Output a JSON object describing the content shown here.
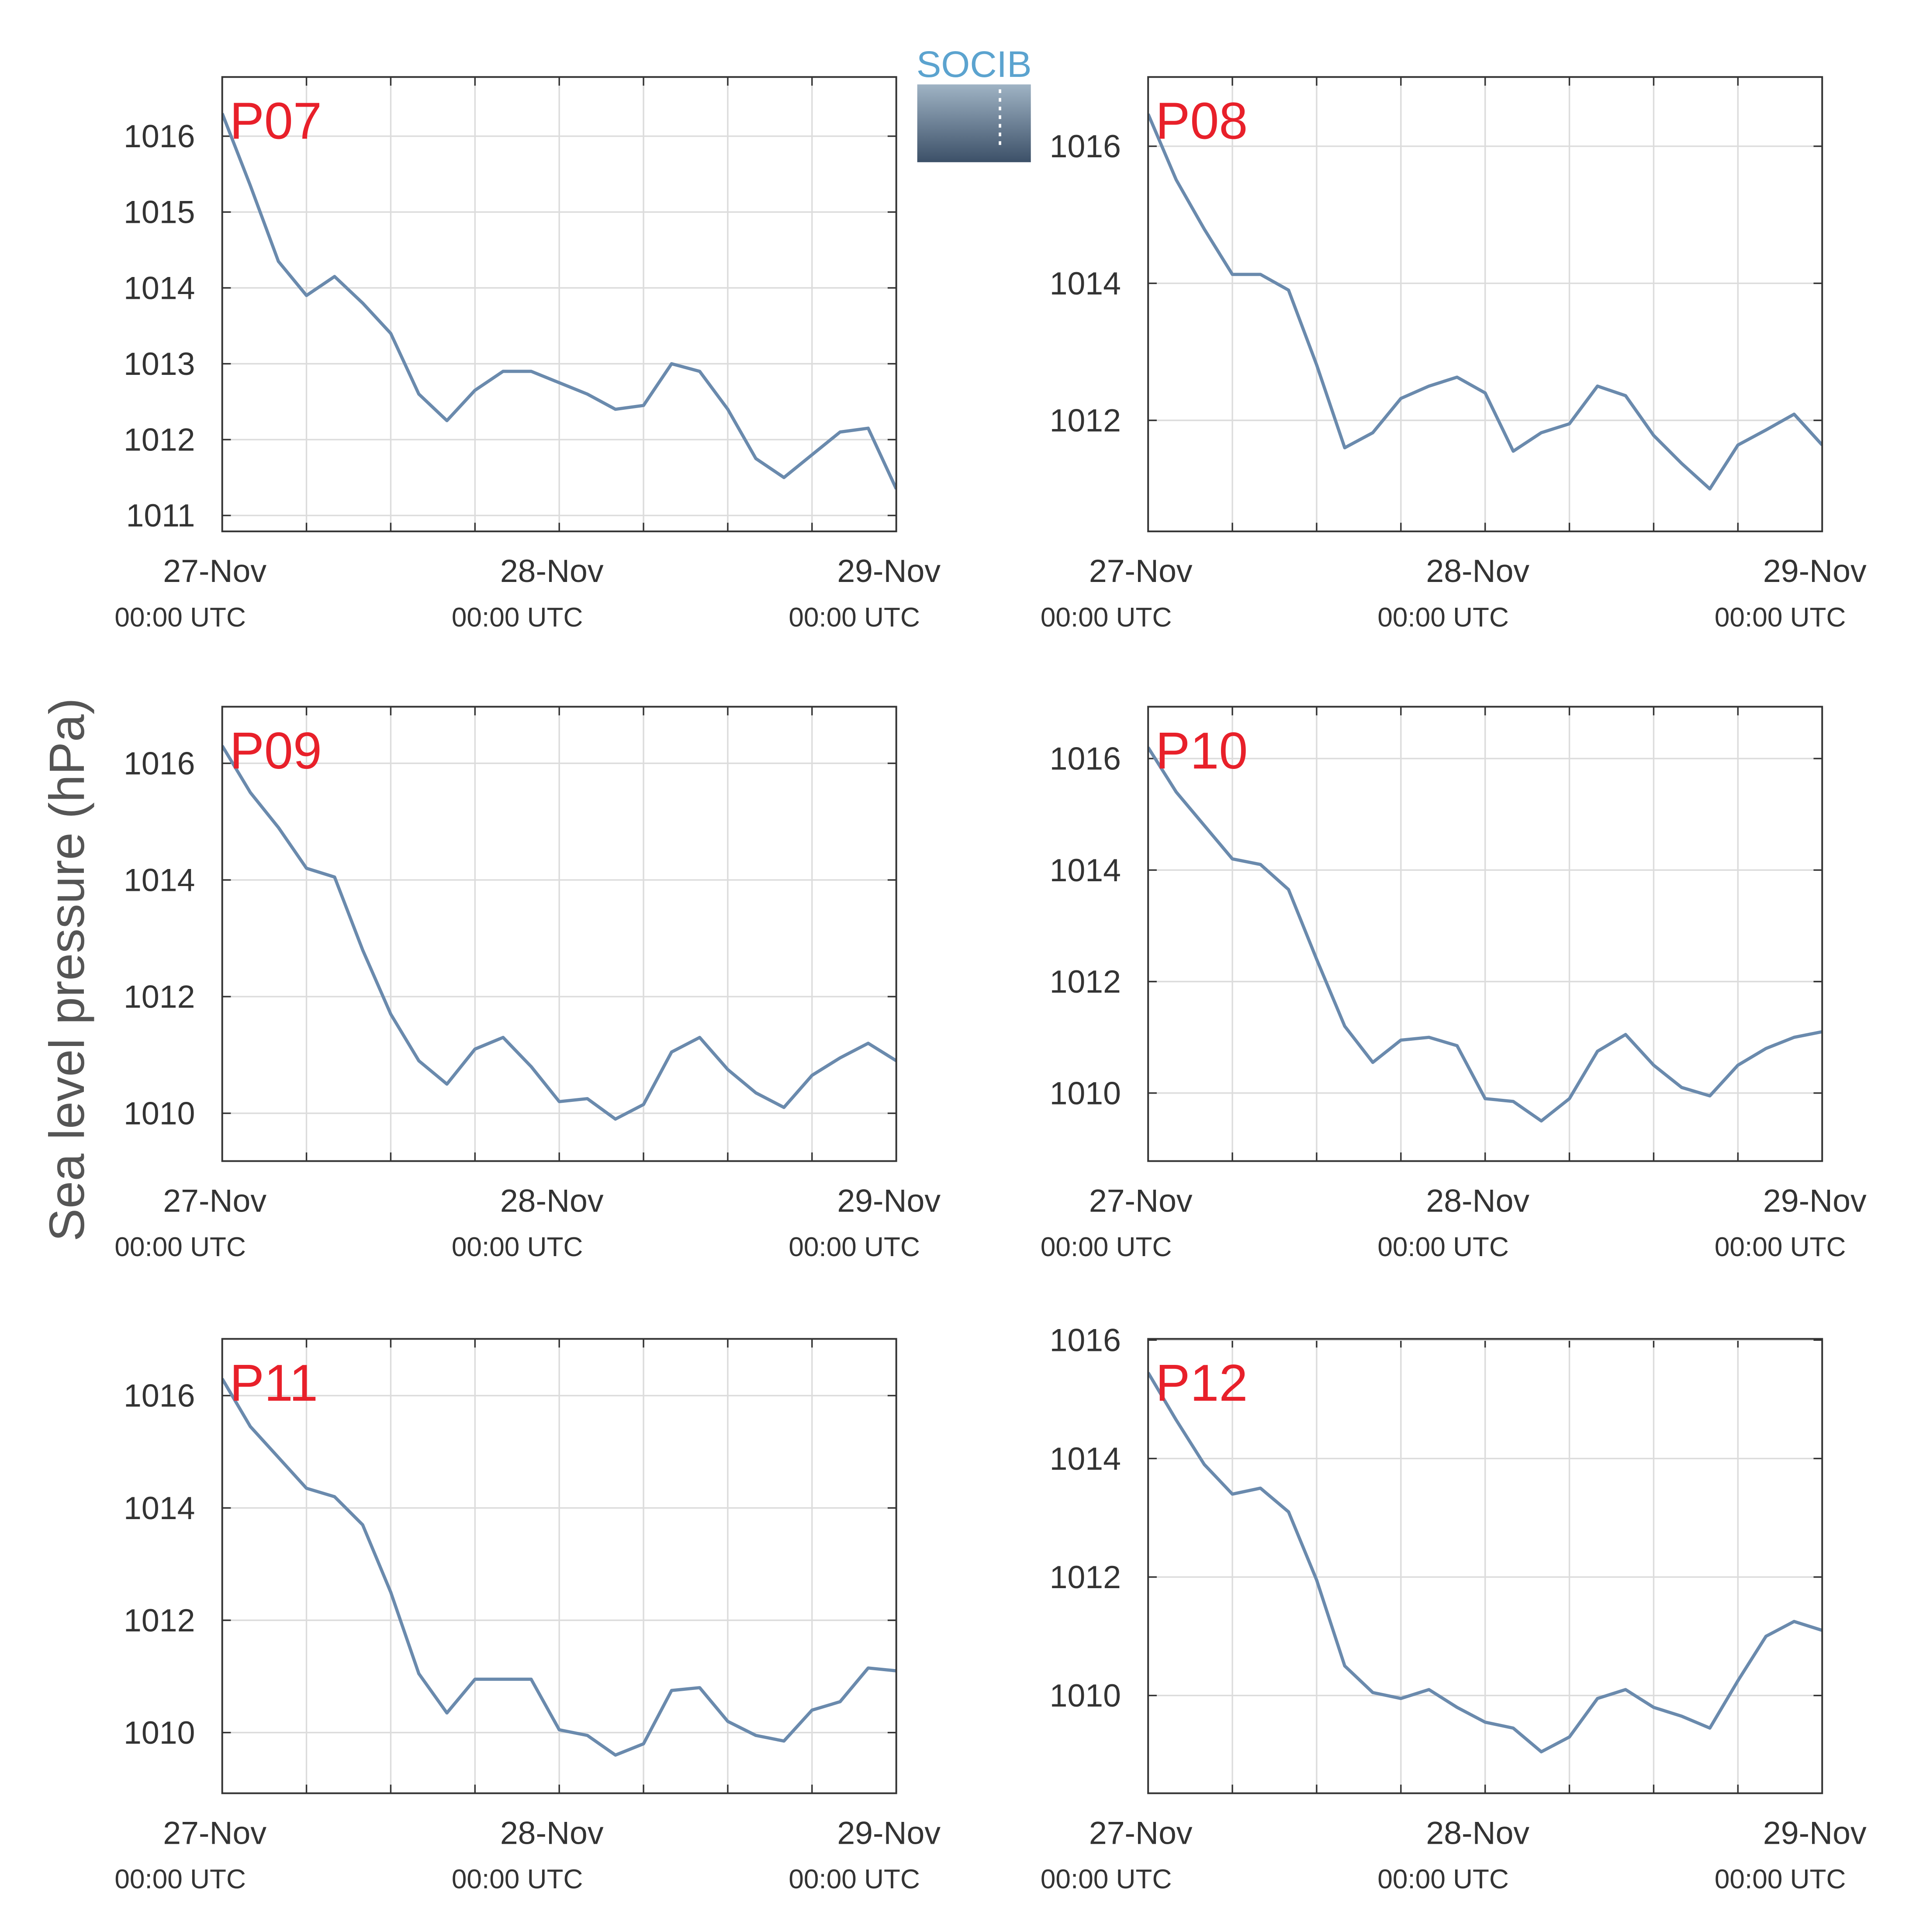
{
  "ylabel": "Sea level pressure (hPa)",
  "logo": "SOCIB",
  "chart_data": [
    {
      "type": "line",
      "title": "P07",
      "title_color": "#e8202a",
      "color": "#6a8aad",
      "grid": true,
      "x": [
        "27-Nov 00:00",
        "27-Nov 02:00",
        "27-Nov 04:00",
        "27-Nov 06:00",
        "27-Nov 08:00",
        "27-Nov 10:00",
        "27-Nov 12:00",
        "27-Nov 14:00",
        "27-Nov 16:00",
        "27-Nov 18:00",
        "27-Nov 20:00",
        "27-Nov 22:00",
        "28-Nov 00:00",
        "28-Nov 02:00",
        "28-Nov 04:00",
        "28-Nov 06:00",
        "28-Nov 08:00",
        "28-Nov 10:00",
        "28-Nov 12:00",
        "28-Nov 14:00",
        "28-Nov 16:00",
        "28-Nov 18:00",
        "28-Nov 20:00",
        "28-Nov 22:00",
        "29-Nov 00:00"
      ],
      "values": [
        1016.3,
        1015.35,
        1014.35,
        1013.9,
        1014.15,
        1013.8,
        1013.4,
        1012.6,
        1012.25,
        1012.65,
        1012.9,
        1012.9,
        1012.75,
        1012.6,
        1012.4,
        1012.45,
        1013.0,
        1012.9,
        1012.4,
        1011.75,
        1011.5,
        1011.8,
        1012.1,
        1012.15,
        1011.35
      ],
      "xlim": [
        "27-Nov 00:00",
        "29-Nov 00:00"
      ],
      "xticks": [
        {
          "value": "27-Nov 00:00",
          "label": [
            "27-Nov",
            "00:00 UTC"
          ]
        },
        {
          "value": "28-Nov 00:00",
          "label": [
            "28-Nov",
            "00:00 UTC"
          ]
        },
        {
          "value": "29-Nov 00:00",
          "label": [
            "29-Nov",
            "00:00 UTC"
          ]
        }
      ],
      "xminorticks": [
        "27-Nov 06:00",
        "27-Nov 12:00",
        "27-Nov 18:00",
        "28-Nov 06:00",
        "28-Nov 12:00",
        "28-Nov 18:00"
      ],
      "ylim": [
        1010.79,
        1016.78
      ],
      "yticks": [
        1011,
        1012,
        1013,
        1014,
        1015,
        1016
      ]
    },
    {
      "type": "line",
      "title": "P08",
      "title_color": "#e8202a",
      "color": "#6a8aad",
      "grid": true,
      "x": [
        "27-Nov 00:00",
        "27-Nov 02:00",
        "27-Nov 04:00",
        "27-Nov 06:00",
        "27-Nov 08:00",
        "27-Nov 10:00",
        "27-Nov 12:00",
        "27-Nov 14:00",
        "27-Nov 16:00",
        "27-Nov 18:00",
        "27-Nov 20:00",
        "27-Nov 22:00",
        "28-Nov 00:00",
        "28-Nov 02:00",
        "28-Nov 04:00",
        "28-Nov 06:00",
        "28-Nov 08:00",
        "28-Nov 10:00",
        "28-Nov 12:00",
        "28-Nov 14:00",
        "28-Nov 16:00",
        "28-Nov 18:00",
        "28-Nov 20:00",
        "28-Nov 22:00",
        "29-Nov 00:00"
      ],
      "values": [
        1016.47,
        1015.51,
        1014.79,
        1014.13,
        1014.13,
        1013.9,
        1012.81,
        1011.6,
        1011.82,
        1012.32,
        1012.5,
        1012.63,
        1012.4,
        1011.55,
        1011.82,
        1011.95,
        1012.5,
        1012.36,
        1011.78,
        1011.37,
        1011.0,
        1011.64,
        1011.86,
        1012.09,
        1011.64
      ],
      "xlim": [
        "27-Nov 00:00",
        "29-Nov 00:00"
      ],
      "xticks": [
        {
          "value": "27-Nov 00:00",
          "label": [
            "27-Nov",
            "00:00 UTC"
          ]
        },
        {
          "value": "28-Nov 00:00",
          "label": [
            "28-Nov",
            "00:00 UTC"
          ]
        },
        {
          "value": "29-Nov 00:00",
          "label": [
            "29-Nov",
            "00:00 UTC"
          ]
        }
      ],
      "xminorticks": [
        "27-Nov 06:00",
        "27-Nov 12:00",
        "27-Nov 18:00",
        "28-Nov 06:00",
        "28-Nov 12:00",
        "28-Nov 18:00"
      ],
      "ylim": [
        1010.38,
        1017.01
      ],
      "yticks": [
        1012,
        1014,
        1016
      ]
    },
    {
      "type": "line",
      "title": "P09",
      "title_color": "#e8202a",
      "color": "#6a8aad",
      "grid": true,
      "x": [
        "27-Nov 00:00",
        "27-Nov 02:00",
        "27-Nov 04:00",
        "27-Nov 06:00",
        "27-Nov 08:00",
        "27-Nov 10:00",
        "27-Nov 12:00",
        "27-Nov 14:00",
        "27-Nov 16:00",
        "27-Nov 18:00",
        "27-Nov 20:00",
        "27-Nov 22:00",
        "28-Nov 00:00",
        "28-Nov 02:00",
        "28-Nov 04:00",
        "28-Nov 06:00",
        "28-Nov 08:00",
        "28-Nov 10:00",
        "28-Nov 12:00",
        "28-Nov 14:00",
        "28-Nov 16:00",
        "28-Nov 18:00",
        "28-Nov 20:00",
        "28-Nov 22:00",
        "29-Nov 00:00"
      ],
      "values": [
        1016.3,
        1015.5,
        1014.9,
        1014.2,
        1014.05,
        1012.8,
        1011.7,
        1010.9,
        1010.5,
        1011.1,
        1011.3,
        1010.8,
        1010.2,
        1010.25,
        1009.9,
        1010.15,
        1011.05,
        1011.3,
        1010.75,
        1010.35,
        1010.1,
        1010.65,
        1010.95,
        1011.2,
        1010.9
      ],
      "xlim": [
        "27-Nov 00:00",
        "29-Nov 00:00"
      ],
      "xticks": [
        {
          "value": "27-Nov 00:00",
          "label": [
            "27-Nov",
            "00:00 UTC"
          ]
        },
        {
          "value": "28-Nov 00:00",
          "label": [
            "28-Nov",
            "00:00 UTC"
          ]
        },
        {
          "value": "29-Nov 00:00",
          "label": [
            "29-Nov",
            "00:00 UTC"
          ]
        }
      ],
      "xminorticks": [
        "27-Nov 06:00",
        "27-Nov 12:00",
        "27-Nov 18:00",
        "28-Nov 06:00",
        "28-Nov 12:00",
        "28-Nov 18:00"
      ],
      "ylim": [
        1009.18,
        1016.97
      ],
      "yticks": [
        1010,
        1012,
        1014,
        1016
      ]
    },
    {
      "type": "line",
      "title": "P10",
      "title_color": "#e8202a",
      "color": "#6a8aad",
      "grid": true,
      "x": [
        "27-Nov 00:00",
        "27-Nov 02:00",
        "27-Nov 04:00",
        "27-Nov 06:00",
        "27-Nov 08:00",
        "27-Nov 10:00",
        "27-Nov 12:00",
        "27-Nov 14:00",
        "27-Nov 16:00",
        "27-Nov 18:00",
        "27-Nov 20:00",
        "27-Nov 22:00",
        "28-Nov 00:00",
        "28-Nov 02:00",
        "28-Nov 04:00",
        "28-Nov 06:00",
        "28-Nov 08:00",
        "28-Nov 10:00",
        "28-Nov 12:00",
        "28-Nov 14:00",
        "28-Nov 16:00",
        "28-Nov 18:00",
        "28-Nov 20:00",
        "28-Nov 22:00",
        "29-Nov 00:00"
      ],
      "values": [
        1016.2,
        1015.4,
        1014.8,
        1014.2,
        1014.1,
        1013.65,
        1012.4,
        1011.2,
        1010.55,
        1010.95,
        1011.0,
        1010.85,
        1009.9,
        1009.85,
        1009.5,
        1009.9,
        1010.75,
        1011.05,
        1010.5,
        1010.1,
        1009.95,
        1010.5,
        1010.8,
        1011.0,
        1011.1
      ],
      "xlim": [
        "27-Nov 00:00",
        "29-Nov 00:00"
      ],
      "xticks": [
        {
          "value": "27-Nov 00:00",
          "label": [
            "27-Nov",
            "00:00 UTC"
          ]
        },
        {
          "value": "28-Nov 00:00",
          "label": [
            "28-Nov",
            "00:00 UTC"
          ]
        },
        {
          "value": "29-Nov 00:00",
          "label": [
            "29-Nov",
            "00:00 UTC"
          ]
        }
      ],
      "xminorticks": [
        "27-Nov 06:00",
        "27-Nov 12:00",
        "27-Nov 18:00",
        "28-Nov 06:00",
        "28-Nov 12:00",
        "28-Nov 18:00"
      ],
      "ylim": [
        1008.78,
        1016.93
      ],
      "yticks": [
        1010,
        1012,
        1014,
        1016
      ]
    },
    {
      "type": "line",
      "title": "P11",
      "title_color": "#e8202a",
      "color": "#6a8aad",
      "grid": true,
      "x": [
        "27-Nov 00:00",
        "27-Nov 02:00",
        "27-Nov 04:00",
        "27-Nov 06:00",
        "27-Nov 08:00",
        "27-Nov 10:00",
        "27-Nov 12:00",
        "27-Nov 14:00",
        "27-Nov 16:00",
        "27-Nov 18:00",
        "27-Nov 20:00",
        "27-Nov 22:00",
        "28-Nov 00:00",
        "28-Nov 02:00",
        "28-Nov 04:00",
        "28-Nov 06:00",
        "28-Nov 08:00",
        "28-Nov 10:00",
        "28-Nov 12:00",
        "28-Nov 14:00",
        "28-Nov 16:00",
        "28-Nov 18:00",
        "28-Nov 20:00",
        "28-Nov 22:00",
        "29-Nov 00:00"
      ],
      "values": [
        1016.3,
        1015.45,
        1014.9,
        1014.35,
        1014.2,
        1013.7,
        1012.5,
        1011.05,
        1010.35,
        1010.95,
        1010.95,
        1010.95,
        1010.05,
        1009.95,
        1009.6,
        1009.8,
        1010.75,
        1010.8,
        1010.2,
        1009.95,
        1009.85,
        1010.4,
        1010.55,
        1011.15,
        1011.1
      ],
      "xlim": [
        "27-Nov 00:00",
        "29-Nov 00:00"
      ],
      "xticks": [
        {
          "value": "27-Nov 00:00",
          "label": [
            "27-Nov",
            "00:00 UTC"
          ]
        },
        {
          "value": "28-Nov 00:00",
          "label": [
            "28-Nov",
            "00:00 UTC"
          ]
        },
        {
          "value": "29-Nov 00:00",
          "label": [
            "29-Nov",
            "00:00 UTC"
          ]
        }
      ],
      "xminorticks": [
        "27-Nov 06:00",
        "27-Nov 12:00",
        "27-Nov 18:00",
        "28-Nov 06:00",
        "28-Nov 12:00",
        "28-Nov 18:00"
      ],
      "ylim": [
        1008.92,
        1017.01
      ],
      "yticks": [
        1010,
        1012,
        1014,
        1016
      ]
    },
    {
      "type": "line",
      "title": "P12",
      "title_color": "#e8202a",
      "color": "#6a8aad",
      "grid": true,
      "x": [
        "27-Nov 00:00",
        "27-Nov 02:00",
        "27-Nov 04:00",
        "27-Nov 06:00",
        "27-Nov 08:00",
        "27-Nov 10:00",
        "27-Nov 12:00",
        "27-Nov 14:00",
        "27-Nov 16:00",
        "27-Nov 18:00",
        "27-Nov 20:00",
        "27-Nov 22:00",
        "28-Nov 00:00",
        "28-Nov 02:00",
        "28-Nov 04:00",
        "28-Nov 06:00",
        "28-Nov 08:00",
        "28-Nov 10:00",
        "28-Nov 12:00",
        "28-Nov 14:00",
        "28-Nov 16:00",
        "28-Nov 18:00",
        "28-Nov 20:00",
        "28-Nov 22:00",
        "29-Nov 00:00"
      ],
      "values": [
        1015.45,
        1014.65,
        1013.9,
        1013.4,
        1013.5,
        1013.1,
        1011.95,
        1010.5,
        1010.05,
        1009.95,
        1010.1,
        1009.8,
        1009.55,
        1009.45,
        1009.05,
        1009.3,
        1009.95,
        1010.1,
        1009.8,
        1009.65,
        1009.45,
        1010.25,
        1011.0,
        1011.25,
        1011.1
      ],
      "xlim": [
        "27-Nov 00:00",
        "29-Nov 00:00"
      ],
      "xticks": [
        {
          "value": "27-Nov 00:00",
          "label": [
            "27-Nov",
            "00:00 UTC"
          ]
        },
        {
          "value": "28-Nov 00:00",
          "label": [
            "28-Nov",
            "00:00 UTC"
          ]
        },
        {
          "value": "29-Nov 00:00",
          "label": [
            "29-Nov",
            "00:00 UTC"
          ]
        }
      ],
      "xminorticks": [
        "27-Nov 06:00",
        "27-Nov 12:00",
        "27-Nov 18:00",
        "28-Nov 06:00",
        "28-Nov 12:00",
        "28-Nov 18:00"
      ],
      "ylim": [
        1008.35,
        1016.02
      ],
      "yticks": [
        1010,
        1012,
        1014,
        1016
      ]
    }
  ]
}
